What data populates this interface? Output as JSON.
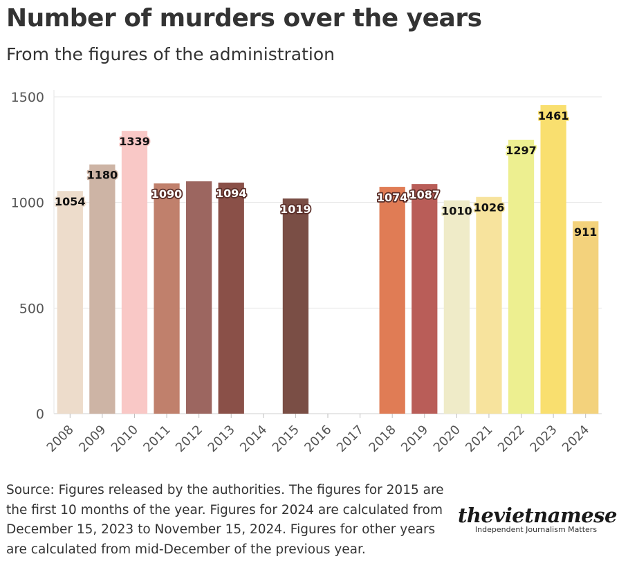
{
  "header": {
    "title": "Number of murders over the years",
    "subtitle": "From the figures of the administration"
  },
  "footer": {
    "source": "Source: Figures released by the authorities. The figures for 2015 are the first 10 months of the year. Figures for 2024 are calculated from December 15, 2023 to November 15, 2024. Figures for other years are calculated from mid-December of the previous year."
  },
  "brand": {
    "name": "thevietnamese",
    "tagline": "Independent Journalism Matters"
  },
  "chart_data": {
    "type": "bar",
    "title": "Number of murders over the years",
    "subtitle": "From the figures of the administration",
    "xlabel": "",
    "ylabel": "",
    "ylim": [
      0,
      1500
    ],
    "yticks": [
      0,
      500,
      1000,
      1500
    ],
    "grid": true,
    "legend": "none",
    "categories": [
      "2008",
      "2009",
      "2010",
      "2011",
      "2012",
      "2013",
      "2014",
      "2015",
      "2016",
      "2017",
      "2018",
      "2019",
      "2020",
      "2021",
      "2022",
      "2023",
      "2024"
    ],
    "values": [
      1054,
      1180,
      1339,
      1090,
      1100,
      1094,
      null,
      1019,
      null,
      null,
      1074,
      1087,
      1010,
      1026,
      1297,
      1461,
      911
    ],
    "labels": [
      "1054",
      "1180",
      "1339",
      "1090",
      "",
      "1094",
      "",
      "1019",
      "",
      "",
      "1074",
      "1087",
      "1010",
      "1026",
      "1297",
      "1461",
      "911"
    ],
    "colors": [
      "#eddccb",
      "#cdb4a5",
      "#f9c8c6",
      "#c0806c",
      "#9c6660",
      "#8a5048",
      "",
      "#7a4e45",
      "",
      "",
      "#e07c55",
      "#b95d58",
      "#efebc8",
      "#f7e39d",
      "#edef90",
      "#f9df6f",
      "#f3d27c"
    ],
    "label_styles": [
      "dark",
      "dark",
      "dark",
      "light",
      "",
      "light",
      "",
      "light",
      "",
      "",
      "light",
      "light",
      "dark",
      "dark",
      "dark",
      "dark",
      "dark"
    ]
  }
}
